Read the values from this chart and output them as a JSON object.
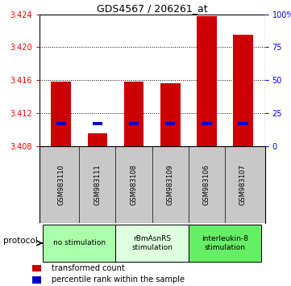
{
  "title": "GDS4567 / 206261_at",
  "samples": [
    "GSM983110",
    "GSM983111",
    "GSM983108",
    "GSM983109",
    "GSM983106",
    "GSM983107"
  ],
  "red_values": [
    3.4158,
    3.4095,
    3.4158,
    3.4156,
    3.4238,
    3.4215
  ],
  "blue_values": [
    3.4107,
    3.4107,
    3.4107,
    3.4107,
    3.4107,
    3.4107
  ],
  "ylim_left": [
    3.408,
    3.424
  ],
  "ylim_right": [
    0,
    100
  ],
  "yticks_left": [
    3.408,
    3.412,
    3.416,
    3.42,
    3.424
  ],
  "yticks_right": [
    0,
    25,
    50,
    75,
    100
  ],
  "ytick_labels_right": [
    "0",
    "25",
    "50",
    "75",
    "100%"
  ],
  "gridlines": [
    3.412,
    3.416,
    3.42
  ],
  "groups": [
    {
      "label": "no stimulation",
      "samples_idx": [
        0,
        1
      ],
      "color": "#aaffaa"
    },
    {
      "label": "rBmAsnRS\nstimulation",
      "samples_idx": [
        2,
        3
      ],
      "color": "#ddffdd"
    },
    {
      "label": "interleukin-8\nstimulation",
      "samples_idx": [
        4,
        5
      ],
      "color": "#66ee66"
    }
  ],
  "bar_width": 0.55,
  "red_color": "#cc0000",
  "blue_color": "#0000cc",
  "base": 3.408,
  "protocol_label": "protocol",
  "legend_red": "transformed count",
  "legend_blue": "percentile rank within the sample",
  "sample_bg": "#c8c8c8",
  "border_color": "#000000"
}
